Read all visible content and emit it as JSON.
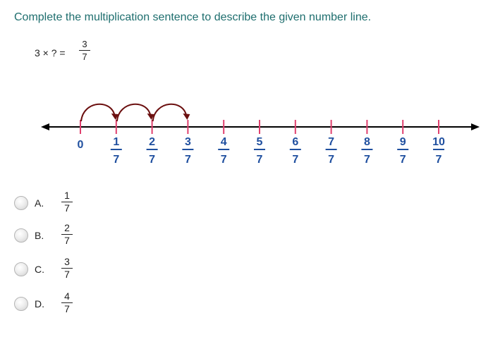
{
  "question": {
    "prompt": "Complete the multiplication sentence to describe the given number line.",
    "equation": {
      "left": "3 × ? =",
      "numerator": "3",
      "denominator": "7"
    }
  },
  "number_line": {
    "start_label": "0",
    "numerators": [
      "1",
      "2",
      "3",
      "4",
      "5",
      "6",
      "7",
      "8",
      "9",
      "10"
    ],
    "denominator": "7",
    "jumps": 3,
    "colors": {
      "line": "#000000",
      "ticks": "#e0406e",
      "labels": "#1f4f9f",
      "arcs": "#6b0f0f"
    }
  },
  "choices": [
    {
      "letter": "A.",
      "numerator": "1",
      "denominator": "7"
    },
    {
      "letter": "B.",
      "numerator": "2",
      "denominator": "7"
    },
    {
      "letter": "C.",
      "numerator": "3",
      "denominator": "7"
    },
    {
      "letter": "D.",
      "numerator": "4",
      "denominator": "7"
    }
  ]
}
